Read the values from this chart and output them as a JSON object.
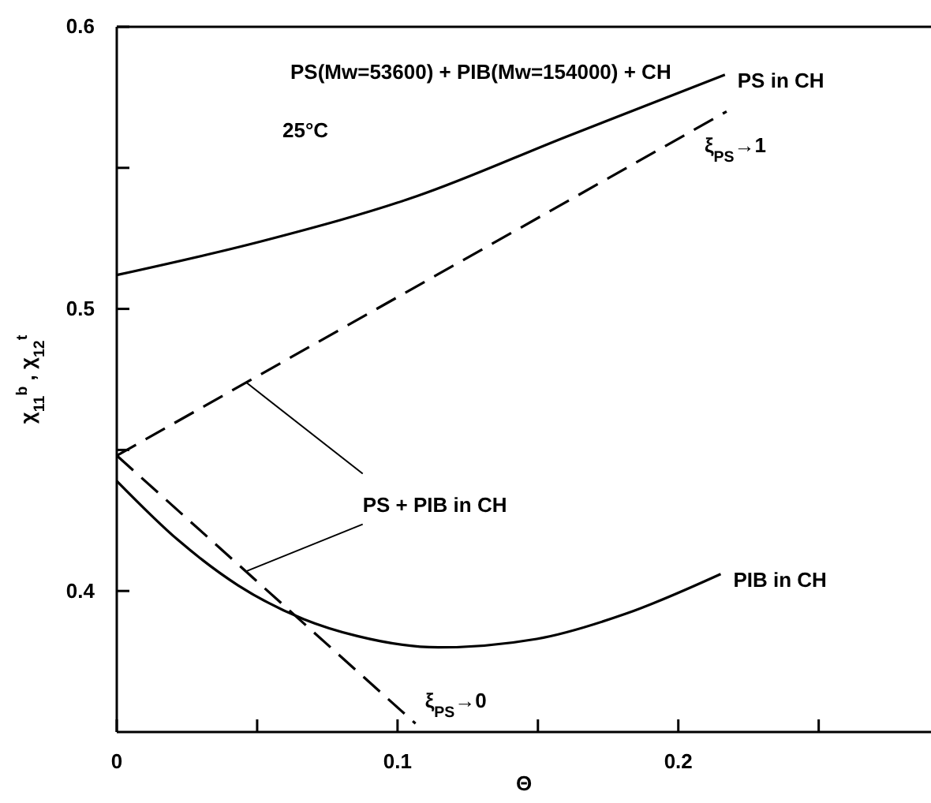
{
  "chart_data": {
    "type": "line",
    "xlabel": "Θ",
    "ylabel": "χ$_{11}$$^{b}$ , χ$_{12}$$^{t}$",
    "xlim": [
      0,
      0.29
    ],
    "xticks": [
      0,
      {
        "value": 0.05,
        "label": null
      },
      0.1,
      {
        "value": 0.15,
        "label": null
      },
      0.2,
      {
        "value": 0.25,
        "label": null
      }
    ],
    "ylim": [
      0.35,
      0.6
    ],
    "yticks": [
      0.4,
      {
        "value": 0.45,
        "label": null
      },
      0.5,
      {
        "value": 0.55,
        "label": null
      },
      0.6
    ],
    "grid": false,
    "legend": false,
    "marker": "none",
    "series": [
      {
        "name": "PS in CH",
        "color": "#000000",
        "line_style": "solid",
        "x": [
          0,
          0.0517,
          0.107,
          0.16,
          0.2166
        ],
        "values": [
          0.512,
          0.524,
          0.54,
          0.561,
          0.583
        ]
      },
      {
        "name": "ξ$_{PS}$→1",
        "color": "#000000",
        "line_style": "dashed",
        "x": [
          0,
          0.2172
        ],
        "values": [
          0.448,
          0.57
        ]
      },
      {
        "name": "ξ$_{PS}$→0",
        "color": "#000000",
        "line_style": "dashed",
        "x": [
          0,
          0.1064
        ],
        "values": [
          0.448,
          0.353
        ]
      },
      {
        "name": "PIB in CH",
        "color": "#000000",
        "line_style": "solid",
        "x": [
          0,
          0.0219,
          0.0432,
          0.0666,
          0.0857,
          0.1145,
          0.1496,
          0.1815,
          0.2151
        ],
        "values": [
          0.439,
          0.418,
          0.402,
          0.39,
          0.384,
          0.38,
          0.383,
          0.392,
          0.406
        ]
      }
    ],
    "annotations": [
      "PS(Mw=53600) + PIB(Mw=154000) + CH",
      "25°C",
      {
        "text": "PS + PIB in CH",
        "x": 0.046,
        "y": 0.474
      }
    ]
  }
}
